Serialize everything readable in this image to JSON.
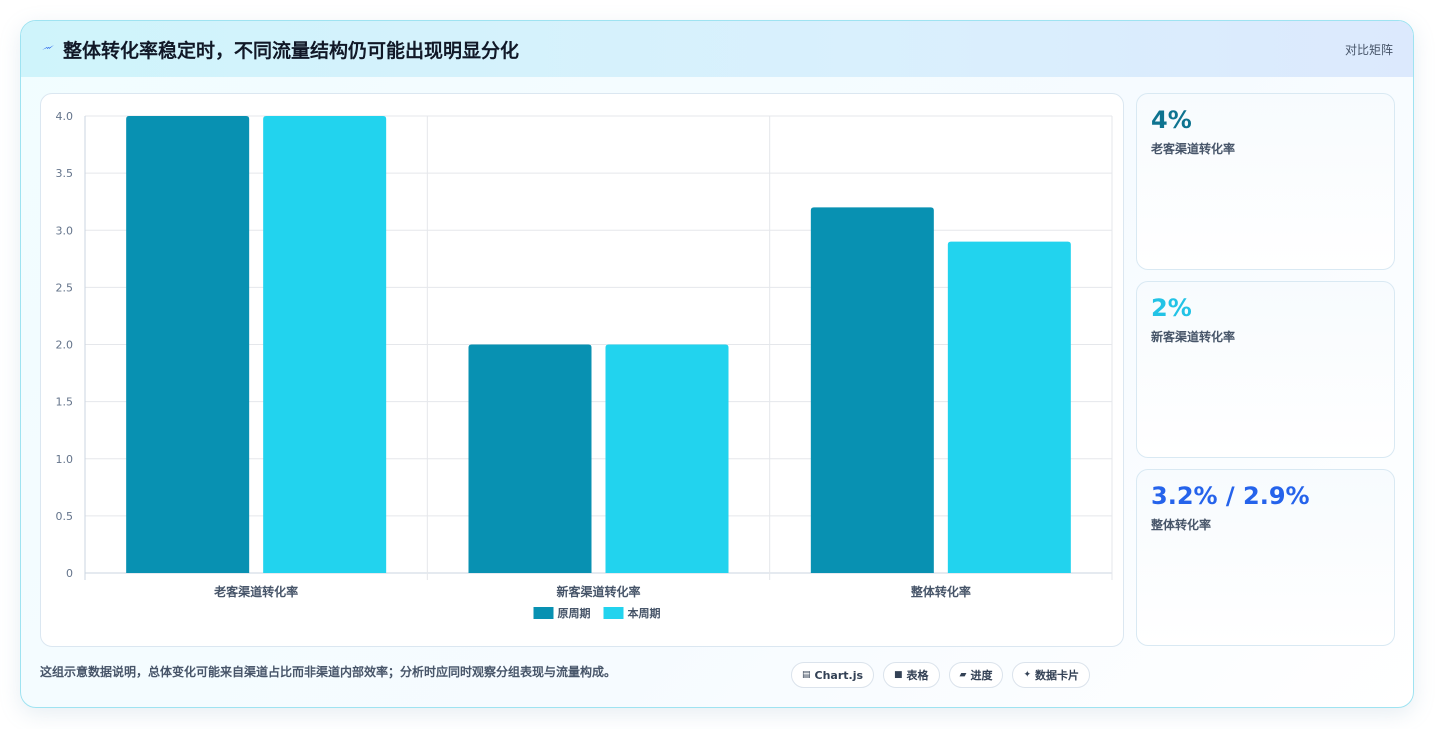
{
  "header": {
    "title": "整体转化率稳定时，不同流量结构仍可能出现明显分化",
    "tag": "对比矩阵",
    "icon": "lightning-icon"
  },
  "chart_data": {
    "type": "bar",
    "categories": [
      "老客渠道转化率",
      "新客渠道转化率",
      "整体转化率"
    ],
    "series": [
      {
        "name": "原周期",
        "values": [
          4.0,
          2.0,
          3.2
        ],
        "color": "#0891b2"
      },
      {
        "name": "本周期",
        "values": [
          4.0,
          2.0,
          2.9
        ],
        "color": "#22d3ee"
      }
    ],
    "ylim": [
      0,
      4
    ],
    "yticks": [
      "0",
      "0.5",
      "1.0",
      "1.5",
      "2.0",
      "2.5",
      "3.0",
      "3.5",
      "4.0"
    ],
    "grid": true,
    "legend_position": "bottom"
  },
  "kpis": [
    {
      "value": "4%",
      "label": "老客渠道转化率",
      "color": "#0e7490"
    },
    {
      "value": "2%",
      "label": "新客渠道转化率",
      "color": "#22c3e6"
    },
    {
      "value": "3.2% / 2.9%",
      "label": "整体转化率",
      "color": "#2563eb"
    }
  ],
  "footer": {
    "note": "这组示意数据说明，总体变化可能来自渠道占比而非渠道内部效率；分析时应同时观察分组表现与流量构成。",
    "chips": [
      {
        "icon": "chart-icon",
        "label": "Chart.js"
      },
      {
        "icon": "table-icon",
        "label": "表格"
      },
      {
        "icon": "progress-icon",
        "label": "进度"
      },
      {
        "icon": "sparkle-icon",
        "label": "数据卡片"
      }
    ]
  }
}
